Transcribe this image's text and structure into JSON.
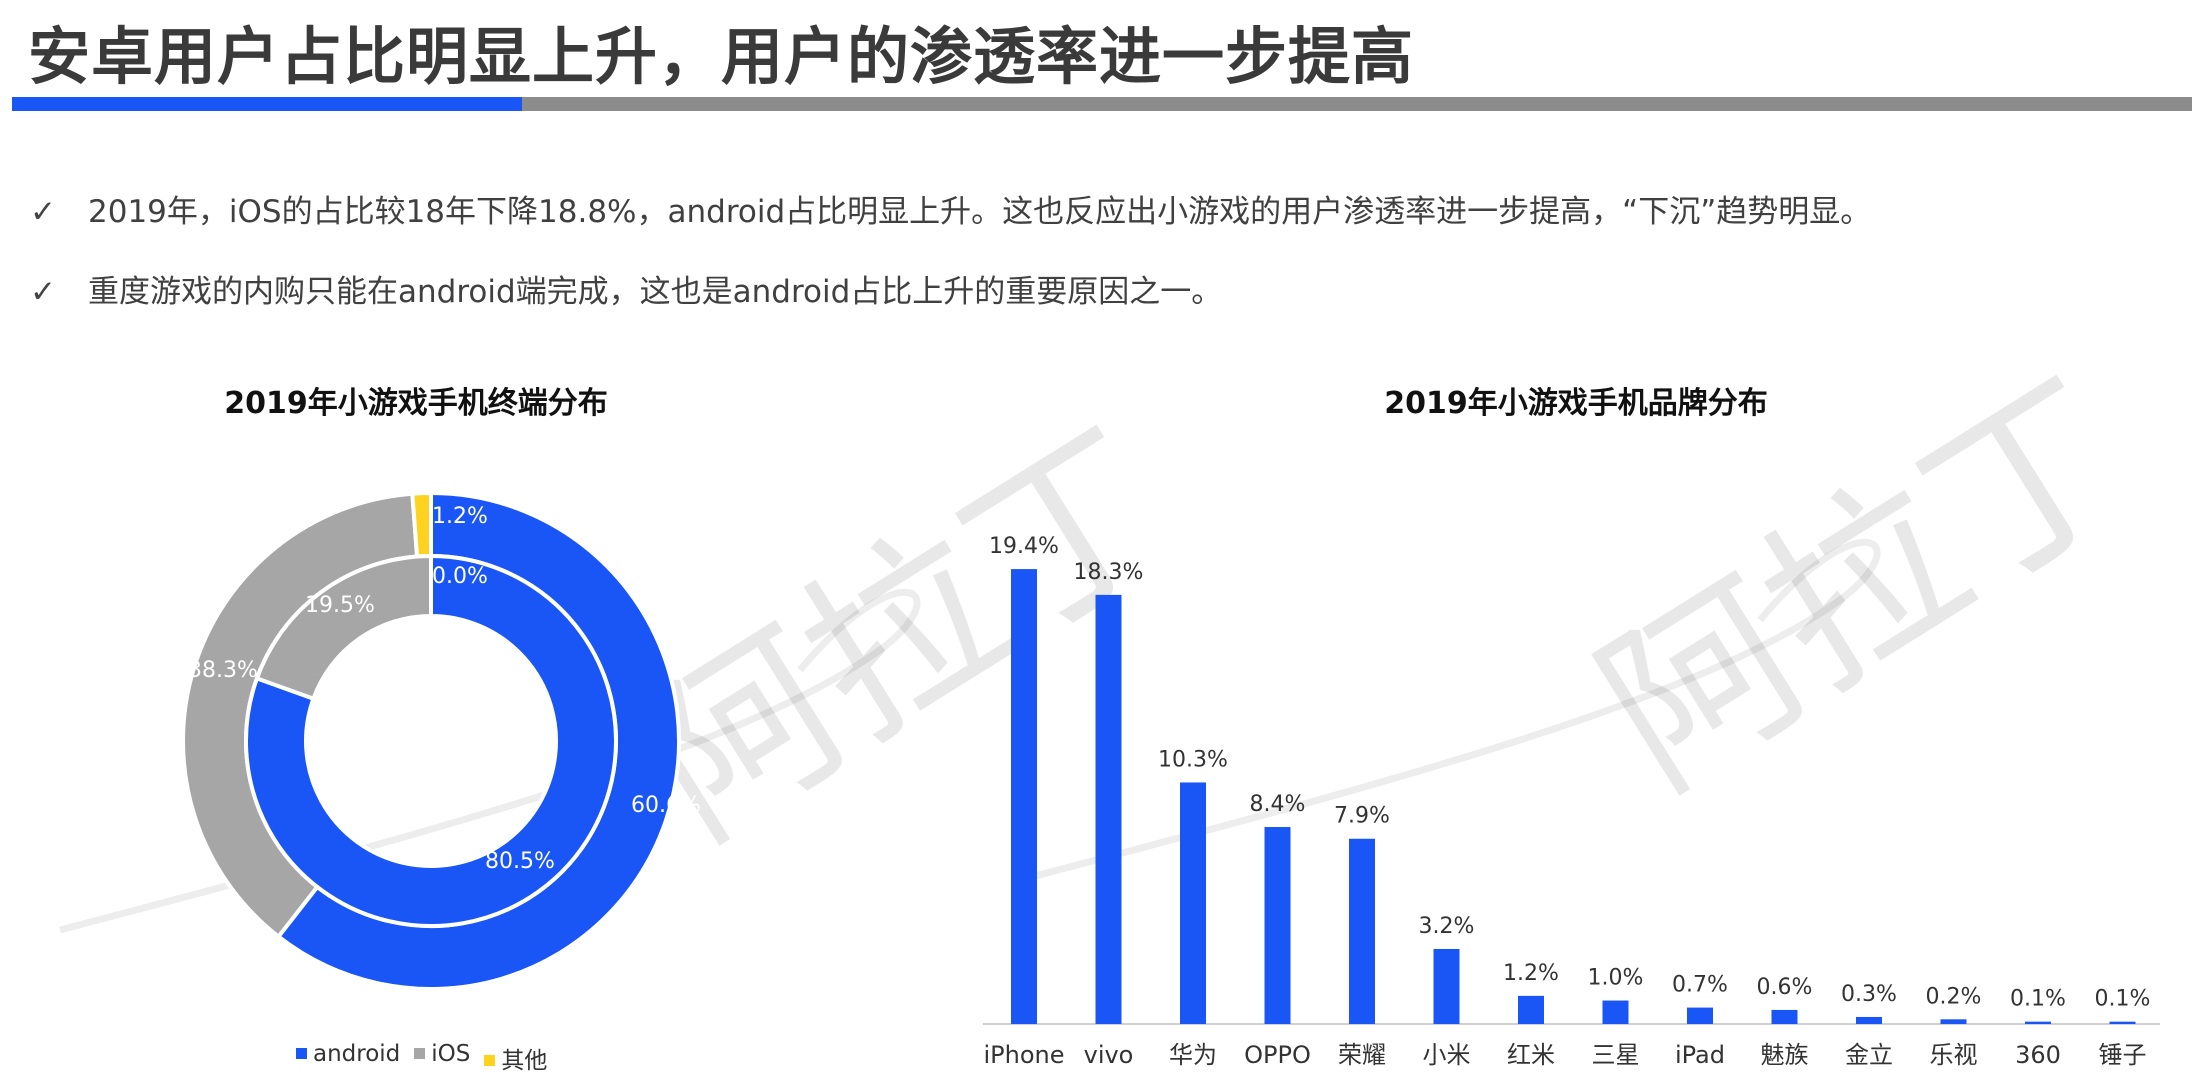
{
  "page": {
    "title": "安卓用户占比明显上升，用户的渗透率进一步提高",
    "bullets": [
      "2019年，iOS的占比较18年下降18.8%，android占比明显上升。这也反应出小游戏的用户渗透率进一步提高，“下沉”趋势明显。",
      "重度游戏的内购只能在android端完成，这也是android占比上升的重要原因之一。"
    ],
    "check_glyph": "✓",
    "accent_color": "#1a56f5",
    "gray_color": "#a6a6a6",
    "yellow_color": "#ffd21f",
    "watermark_text": "阿拉丁"
  },
  "chart_data": [
    {
      "type": "pie",
      "variant": "double-donut",
      "title": "2019年小游戏手机终端分布",
      "categories": [
        "android",
        "iOS",
        "其他"
      ],
      "colors": [
        "#1a56f5",
        "#a6a6a6",
        "#ffd21f"
      ],
      "series": [
        {
          "ring": "outer",
          "values": [
            60.6,
            38.3,
            1.2
          ],
          "labels": [
            "60.6%",
            "38.3%",
            "1.2%"
          ]
        },
        {
          "ring": "inner",
          "values": [
            80.5,
            19.5,
            0.0
          ],
          "labels": [
            "80.5%",
            "19.5%",
            "0.0%"
          ]
        }
      ],
      "legend": "bottom"
    },
    {
      "type": "bar",
      "title": "2019年小游戏手机品牌分布",
      "categories": [
        "iPhone",
        "vivo",
        "华为",
        "OPPO",
        "荣耀",
        "小米",
        "红米",
        "三星",
        "iPad",
        "魅族",
        "金立",
        "乐视",
        "360",
        "锤子"
      ],
      "values": [
        19.4,
        18.3,
        10.3,
        8.4,
        7.9,
        3.2,
        1.2,
        1.0,
        0.7,
        0.6,
        0.3,
        0.2,
        0.1,
        0.1
      ],
      "labels": [
        "19.4%",
        "18.3%",
        "10.3%",
        "8.4%",
        "7.9%",
        "3.2%",
        "1.2%",
        "1.0%",
        "0.7%",
        "0.6%",
        "0.3%",
        "0.2%",
        "0.1%",
        "0.1%"
      ],
      "ylim": [
        0,
        20
      ],
      "color": "#1a56f5",
      "grid": false
    }
  ]
}
